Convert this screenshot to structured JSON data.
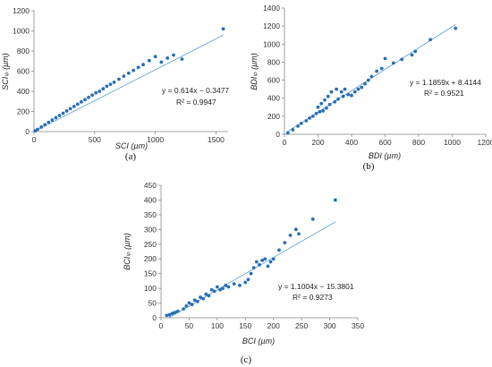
{
  "chart_data": [
    {
      "type": "scatter",
      "panel_label": "(a)",
      "xlabel": "SCI (µm)",
      "ylabel": "SCIₗₚ (µm)",
      "xlim": [
        0,
        1600
      ],
      "ylim": [
        0,
        1200
      ],
      "xticks": [
        0,
        500,
        1000,
        1500
      ],
      "yticks": [
        0,
        200,
        400,
        600,
        800,
        1000,
        1200
      ],
      "trendline": {
        "slope": 0.614,
        "intercept": -0.3477,
        "equation": "y = 0.614x − 0.3477",
        "r2": "R² = 0.9947"
      },
      "colors": {
        "points": "#2a6eb5",
        "trendline": "#5b9bd5"
      },
      "series": [
        {
          "x": [
            10,
            30,
            60,
            90,
            120,
            150,
            180,
            210,
            240,
            270,
            300,
            330,
            360,
            390,
            420,
            450,
            480,
            510,
            540,
            570,
            600,
            630,
            660,
            700,
            740,
            780,
            820,
            860,
            900,
            950,
            1000,
            1050,
            1100,
            1150,
            1220,
            1560
          ],
          "y": [
            8,
            22,
            45,
            68,
            92,
            115,
            138,
            160,
            182,
            205,
            228,
            250,
            272,
            295,
            318,
            340,
            362,
            385,
            400,
            425,
            450,
            470,
            490,
            520,
            550,
            580,
            608,
            638,
            665,
            705,
            745,
            690,
            730,
            760,
            720,
            1020
          ]
        }
      ]
    },
    {
      "type": "scatter",
      "panel_label": "(b)",
      "xlabel": "BDI (µm)",
      "ylabel": "BDIₗₚ (µm)",
      "xlim": [
        0,
        1200
      ],
      "ylim": [
        0,
        1400
      ],
      "xticks": [
        0,
        200,
        400,
        600,
        800,
        1000,
        1200
      ],
      "yticks": [
        0,
        200,
        400,
        600,
        800,
        1000,
        1200,
        1400
      ],
      "trendline": {
        "slope": 1.1859,
        "intercept": 8.4144,
        "equation": "y = 1.1859x + 8.4144",
        "r2": "R² = 0.9521"
      },
      "colors": {
        "points": "#2a6eb5",
        "trendline": "#5b9bd5"
      },
      "series": [
        {
          "x": [
            20,
            50,
            80,
            100,
            130,
            150,
            170,
            190,
            200,
            210,
            220,
            230,
            240,
            250,
            260,
            270,
            280,
            300,
            310,
            320,
            340,
            350,
            360,
            380,
            400,
            420,
            440,
            460,
            480,
            500,
            520,
            550,
            580,
            600,
            650,
            700,
            760,
            780,
            870,
            1020
          ],
          "y": [
            15,
            50,
            90,
            120,
            150,
            180,
            200,
            230,
            300,
            250,
            340,
            260,
            380,
            290,
            420,
            330,
            470,
            360,
            500,
            390,
            470,
            420,
            500,
            440,
            430,
            470,
            500,
            520,
            560,
            600,
            640,
            700,
            730,
            840,
            790,
            830,
            880,
            920,
            1050,
            1175
          ]
        }
      ]
    },
    {
      "type": "scatter",
      "panel_label": "(c)",
      "xlabel": "BCI (µm)",
      "ylabel": "BCIₗₚ (µm)",
      "xlim": [
        0,
        350
      ],
      "ylim": [
        0,
        450
      ],
      "xticks": [
        0,
        50,
        100,
        150,
        200,
        250,
        300,
        350
      ],
      "yticks": [
        0,
        50,
        100,
        150,
        200,
        250,
        300,
        350,
        400,
        450
      ],
      "trendline": {
        "slope": 1.1004,
        "intercept": -15.3801,
        "equation": "y = 1.1004x − 15.3801",
        "r2": "R² = 0.9273"
      },
      "colors": {
        "points": "#2a6eb5",
        "trendline": "#5b9bd5"
      },
      "series": [
        {
          "x": [
            10,
            15,
            20,
            25,
            30,
            40,
            45,
            50,
            55,
            60,
            65,
            70,
            75,
            80,
            85,
            90,
            95,
            100,
            105,
            110,
            115,
            120,
            130,
            140,
            150,
            155,
            160,
            165,
            170,
            175,
            180,
            185,
            190,
            195,
            200,
            210,
            220,
            230,
            240,
            245,
            270,
            310
          ],
          "y": [
            8,
            10,
            15,
            18,
            22,
            30,
            40,
            50,
            45,
            60,
            55,
            70,
            65,
            80,
            75,
            95,
            90,
            105,
            95,
            100,
            110,
            105,
            115,
            110,
            120,
            130,
            150,
            170,
            190,
            180,
            195,
            200,
            175,
            190,
            200,
            230,
            255,
            280,
            300,
            285,
            335,
            400
          ]
        }
      ]
    }
  ]
}
